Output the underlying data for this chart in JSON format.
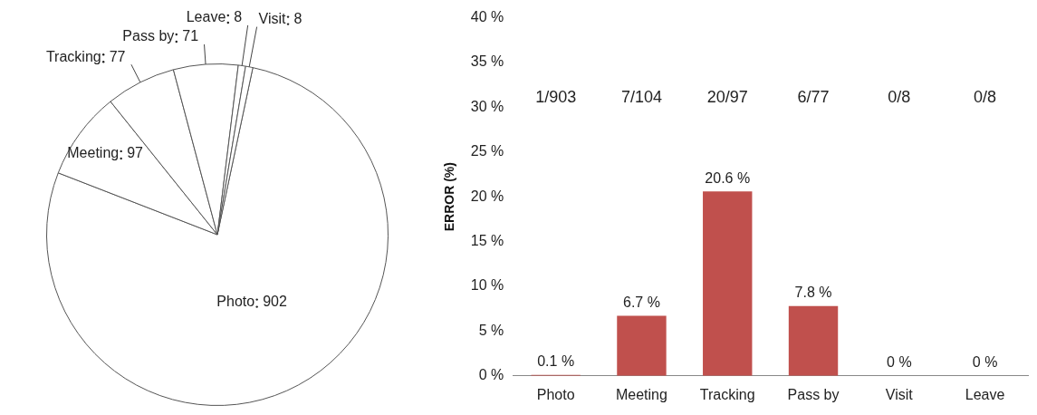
{
  "chart_data": [
    {
      "type": "pie",
      "categories": [
        "Photo",
        "Meeting",
        "Tracking",
        "Pass by",
        "Leave",
        "Visit"
      ],
      "values": [
        902,
        97,
        77,
        71,
        8,
        8
      ],
      "colors": [
        "#ffffff",
        "#ffffff",
        "#ffffff",
        "#ffffff",
        "#ffffff",
        "#ffffff"
      ],
      "data_labels": true,
      "legend": false
    },
    {
      "type": "bar",
      "categories": [
        "Photo",
        "Meeting",
        "Tracking",
        "Pass by",
        "Visit",
        "Leave"
      ],
      "values": [
        0.1,
        6.7,
        20.6,
        7.8,
        0,
        0
      ],
      "color": "#c0504d",
      "value_labels": [
        "0.1 %",
        "6.7 %",
        "20.6 %",
        "7.8 %",
        "0 %",
        "0 %"
      ],
      "ylabel": "ERROR (%)",
      "ylim": [
        0,
        40
      ],
      "yticks": [
        {
          "value": 0,
          "label": "0 %"
        },
        {
          "value": 5,
          "label": "5 %"
        },
        {
          "value": 10,
          "label": "10 %"
        },
        {
          "value": 15,
          "label": "15 %"
        },
        {
          "value": 20,
          "label": "20 %"
        },
        {
          "value": 25,
          "label": "25 %"
        },
        {
          "value": 30,
          "label": "30 %"
        },
        {
          "value": 35,
          "label": "35 %"
        },
        {
          "value": 40,
          "label": "40 %"
        }
      ],
      "grid": false,
      "legend": false,
      "annotations": [
        "1/903",
        "7/104",
        "20/97",
        "6/77",
        "0/8",
        "0/8"
      ]
    }
  ]
}
